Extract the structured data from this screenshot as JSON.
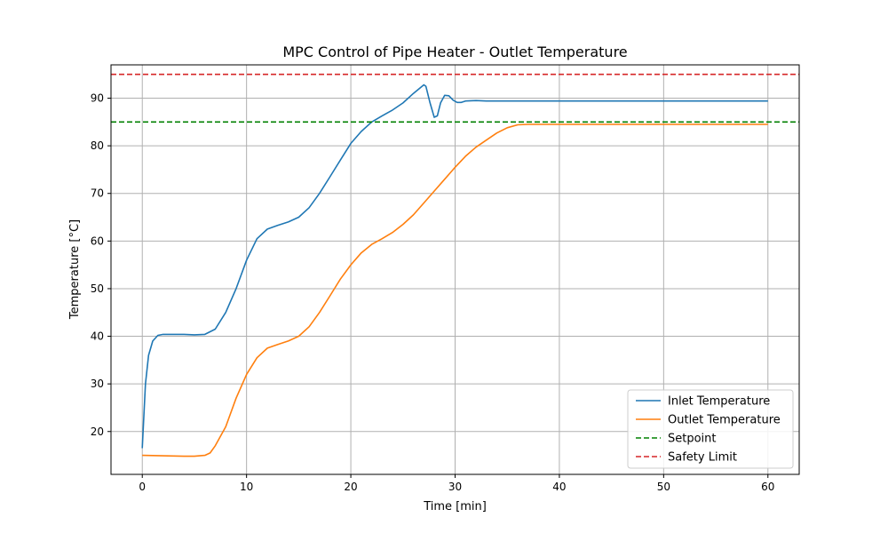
{
  "chart_data": {
    "type": "line",
    "title": "MPC Control of Pipe Heater - Outlet Temperature",
    "xlabel": "Time [min]",
    "ylabel": "Temperature [°C]",
    "xlim": [
      -3,
      63
    ],
    "ylim": [
      11,
      97
    ],
    "xticks": [
      0,
      10,
      20,
      30,
      40,
      50,
      60
    ],
    "yticks": [
      20,
      30,
      40,
      50,
      60,
      70,
      80,
      90
    ],
    "grid": true,
    "legend_position": "lower-right",
    "series": [
      {
        "name": "Inlet Temperature",
        "color": "#1f77b4",
        "style": "solid",
        "x": [
          0,
          0.3,
          0.6,
          1,
          1.5,
          2,
          3,
          4,
          5,
          6,
          7,
          8,
          9,
          10,
          11,
          12,
          13,
          14,
          15,
          16,
          17,
          18,
          19,
          20,
          21,
          22,
          23,
          24,
          25,
          26,
          27,
          27.2,
          27.6,
          28,
          28.3,
          28.6,
          29,
          29.4,
          29.8,
          30.2,
          30.6,
          31,
          32,
          33,
          35,
          40,
          45,
          50,
          55,
          60
        ],
        "y": [
          16.5,
          30,
          36,
          39,
          40.2,
          40.4,
          40.4,
          40.4,
          40.3,
          40.4,
          41.5,
          45,
          50,
          56,
          60.5,
          62.5,
          63.3,
          64,
          65,
          67,
          70,
          73.5,
          77,
          80.5,
          83,
          85,
          86.3,
          87.5,
          89,
          91,
          92.8,
          92.5,
          89,
          86,
          86.3,
          89,
          90.6,
          90.5,
          89.6,
          89.1,
          89.1,
          89.4,
          89.5,
          89.4,
          89.4,
          89.4,
          89.4,
          89.4,
          89.4,
          89.4
        ]
      },
      {
        "name": "Outlet Temperature",
        "color": "#ff7f0e",
        "style": "solid",
        "x": [
          0,
          2,
          4,
          5,
          6,
          6.5,
          7,
          8,
          9,
          10,
          11,
          12,
          13,
          14,
          15,
          16,
          17,
          18,
          19,
          20,
          21,
          22,
          23,
          24,
          25,
          26,
          27,
          28,
          29,
          30,
          31,
          32,
          33,
          34,
          35,
          36,
          37,
          40,
          45,
          50,
          55,
          60
        ],
        "y": [
          15,
          14.9,
          14.8,
          14.8,
          15,
          15.5,
          17,
          21,
          27,
          32,
          35.5,
          37.5,
          38.3,
          39,
          40,
          42,
          45,
          48.5,
          52,
          55,
          57.5,
          59.3,
          60.5,
          61.8,
          63.5,
          65.5,
          68,
          70.5,
          73,
          75.5,
          77.8,
          79.7,
          81.2,
          82.7,
          83.8,
          84.4,
          84.5,
          84.5,
          84.5,
          84.5,
          84.5,
          84.5
        ]
      },
      {
        "name": "Setpoint",
        "color": "#008000",
        "style": "dashed",
        "hline": 85
      },
      {
        "name": "Safety Limit",
        "color": "#d62728",
        "style": "dashed",
        "hline": 95
      }
    ]
  }
}
